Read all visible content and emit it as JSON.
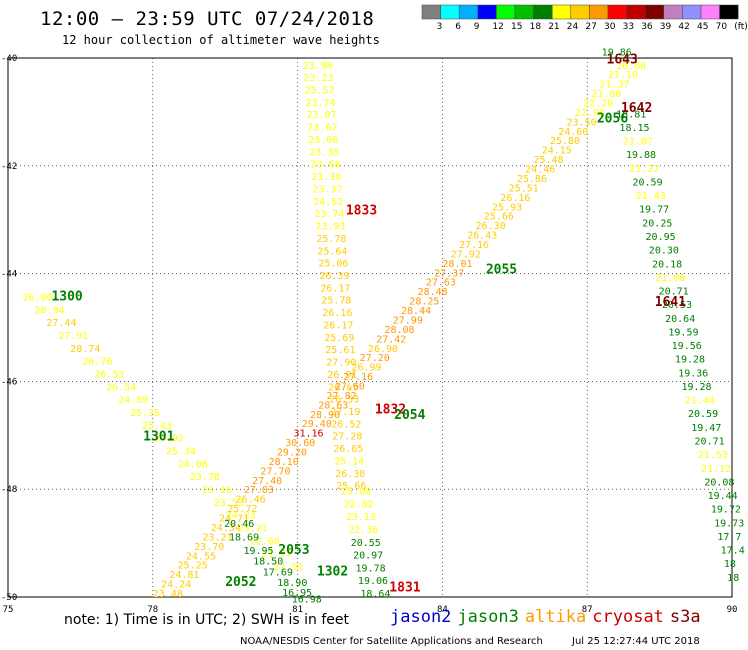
{
  "title": "12:00 – 23:59 UTC 07/24/2018",
  "subtitle": "12 hour collection of altimeter wave heights",
  "colorbar": {
    "colors": [
      "#808080",
      "#00ffff",
      "#00b0ff",
      "#0000ff",
      "#00ff00",
      "#00c000",
      "#008000",
      "#ffff00",
      "#ffcc00",
      "#ff9900",
      "#ff0000",
      "#c00000",
      "#800000",
      "#c080c0",
      "#9090ff",
      "#ff80ff",
      "#000000"
    ],
    "labels": [
      "3",
      "6",
      "9",
      "12",
      "15",
      "18",
      "21",
      "24",
      "27",
      "30",
      "33",
      "36",
      "39",
      "42",
      "45",
      "70",
      "(ft)"
    ]
  },
  "map": {
    "x_ticks": [
      "75",
      "78",
      "81",
      "84",
      "87",
      "90"
    ],
    "y_ticks": [
      "-40",
      "-42",
      "-44",
      "-46",
      "-48",
      "-50"
    ],
    "xlim": [
      75,
      90
    ],
    "ylim": [
      -50,
      -40
    ]
  },
  "satellites": [
    {
      "name": "jason2",
      "color": "#0000cc"
    },
    {
      "name": "jason3",
      "color": "#008000"
    },
    {
      "name": "altika",
      "color": "#ff9900"
    },
    {
      "name": "cryosat",
      "color": "#cc0000"
    },
    {
      "name": "s3a",
      "color": "#800000"
    }
  ],
  "tracks": [
    {
      "label": "1300",
      "label_color": "#008000",
      "label_at": [
        75.9,
        -44.5
      ],
      "start": [
        75.3,
        -44.5
      ],
      "end": [
        80.5,
        -49.5
      ],
      "values": [
        "26.00",
        "28.94",
        "27.44",
        "27.91",
        "28.74",
        "26.76",
        "26.53",
        "26.54",
        "24.69",
        "25.25",
        "25.43",
        "24.92",
        "25.34",
        "24.06",
        "23.78",
        "23.16",
        "23.53",
        "24.23",
        "23.21",
        "22.60",
        "21.77",
        "21.91"
      ],
      "colors": [
        "#ffff00",
        "#ffff00",
        "#ffcc00",
        "#ffff00",
        "#ffcc00",
        "#ffff00",
        "#ffff00",
        "#ffff00",
        "#ffff00",
        "#ffff00",
        "#ffff00",
        "#ffff00",
        "#ffff00",
        "#ffff00",
        "#ffff00",
        "#ffff00",
        "#ffff00",
        "#ffff00",
        "#ffff00",
        "#ffff00",
        "#ffff00",
        "#ffff00"
      ]
    },
    {
      "label": "1833",
      "label_color": "#cc0000",
      "label_at": [
        82.0,
        -42.9
      ],
      "start": [
        81.1,
        -40.2
      ],
      "end": [
        81.8,
        -48.0
      ],
      "values": [
        "23.98",
        "23.23",
        "23.57",
        "23.74",
        "23.07",
        "23.62",
        "23.06",
        "23.35",
        "23.68",
        "23.38",
        "23.37",
        "24.52",
        "23.74",
        "23.93",
        "25.78",
        "25.64",
        "25.06",
        "26.39",
        "26.17",
        "25.78",
        "26.16",
        "26.17",
        "25.69",
        "25.61",
        "27.90",
        "26.91",
        "26.65",
        "26.53",
        "27.19",
        "26.52",
        "27.28",
        "26.65",
        "25.14",
        "26.38",
        "25.66"
      ],
      "colors": [
        "#ffff00",
        "#ffff00",
        "#ffff00",
        "#ffff00",
        "#ffff00",
        "#ffff00",
        "#ffff00",
        "#ffff00",
        "#ffff00",
        "#ffff00",
        "#ffff00",
        "#ffff00",
        "#ffff00",
        "#ffff00",
        "#ffcc00",
        "#ffcc00",
        "#ffcc00",
        "#ffcc00",
        "#ffcc00",
        "#ffcc00",
        "#ffcc00",
        "#ffcc00",
        "#ffcc00",
        "#ffcc00",
        "#ffcc00",
        "#ffcc00",
        "#ffcc00",
        "#ffcc00",
        "#ffcc00",
        "#ffcc00",
        "#ffcc00",
        "#ffcc00",
        "#ffff00",
        "#ffcc00",
        "#ffcc00"
      ]
    },
    {
      "label": "1831",
      "label_color": "#cc0000",
      "label_at": [
        82.9,
        -49.9
      ],
      "start": [
        81.9,
        -48.1
      ],
      "end": [
        82.3,
        -50.0
      ],
      "values": [
        "25.08",
        "22.82",
        "23.13",
        "22.36",
        "20.55",
        "20.97",
        "19.78",
        "19.06",
        "18.64"
      ],
      "colors": [
        "#ffff00",
        "#ffff00",
        "#ffff00",
        "#ffff00",
        "#008000",
        "#008000",
        "#008000",
        "#008000",
        "#008000"
      ]
    },
    {
      "label": "1832",
      "label_color": "#cc0000",
      "label_at": [
        82.6,
        -46.6
      ],
      "start": [
        78.0,
        -50.0
      ],
      "end": [
        87.6,
        -40.2
      ],
      "values": [
        "23.48",
        "24.24",
        "24.81",
        "25.25",
        "24.55",
        "23.70",
        "23.21",
        "24.34",
        "24.71",
        "25.72",
        "26.46",
        "27.03",
        "27.40",
        "27.70",
        "28.10",
        "29.20",
        "30.60",
        "31.16",
        "29.40",
        "28.90",
        "28.63",
        "27.82",
        "27.60",
        "27.16",
        "26.99",
        "27.20",
        "26.90",
        "27.42",
        "28.08",
        "27.99",
        "28.44",
        "28.25",
        "28.48",
        "27.63",
        "27.37",
        "28.01",
        "27.92",
        "27.16",
        "26.43",
        "26.30",
        "25.66",
        "25.93",
        "26.16",
        "25.51",
        "25.86",
        "24.46",
        "25.48",
        "24.15",
        "25.80",
        "24.60",
        "23.50",
        "22.90",
        "22.20",
        "21.80",
        "21.37",
        "21.10",
        "20.60"
      ],
      "colors": [
        "#ffcc00",
        "#ffcc00",
        "#ffcc00",
        "#ffcc00",
        "#ffcc00",
        "#ffcc00",
        "#ffcc00",
        "#ffcc00",
        "#ffcc00",
        "#ffcc00",
        "#ffcc00",
        "#ff9900",
        "#ff9900",
        "#ff9900",
        "#ff9900",
        "#ff9900",
        "#ff9900",
        "#cc0000",
        "#ff9900",
        "#ff9900",
        "#ff9900",
        "#ff9900",
        "#ff9900",
        "#ff9900",
        "#ffcc00",
        "#ff9900",
        "#ffcc00",
        "#ff9900",
        "#ff9900",
        "#ff9900",
        "#ff9900",
        "#ff9900",
        "#ff9900",
        "#ff9900",
        "#ff9900",
        "#ff9900",
        "#ffcc00",
        "#ffcc00",
        "#ffcc00",
        "#ffcc00",
        "#ffcc00",
        "#ffcc00",
        "#ffcc00",
        "#ffcc00",
        "#ffcc00",
        "#ffcc00",
        "#ffcc00",
        "#ffcc00",
        "#ffcc00",
        "#ffcc00",
        "#ffcc00",
        "#ffff00",
        "#ffff00",
        "#ffff00",
        "#ffff00",
        "#ffff00",
        "#ffff00"
      ]
    },
    {
      "label": "1641",
      "label_color": "#800000",
      "label_at": [
        88.4,
        -44.6
      ],
      "start": [
        87.6,
        -41.1
      ],
      "end": [
        89.9,
        -49.7
      ],
      "values": [
        "18.81",
        "18.15",
        "21.07",
        "19.88",
        "21.27",
        "20.59",
        "21.43",
        "19.77",
        "20.25",
        "20.95",
        "20.30",
        "20.18",
        "21.08",
        "20.71",
        "20.53",
        "20.64",
        "19.59",
        "19.56",
        "19.28",
        "19.36",
        "19.28",
        "21.44",
        "20.59",
        "19.47",
        "20.71",
        "21.53",
        "21.12",
        "20.08",
        "19.44",
        "19.72",
        "19.73",
        "17.7",
        "17.4",
        "18",
        "18"
      ],
      "colors": [
        "#008000",
        "#008000",
        "#ffff00",
        "#008000",
        "#ffff00",
        "#008000",
        "#ffff00",
        "#008000",
        "#008000",
        "#008000",
        "#008000",
        "#008000",
        "#ffff00",
        "#008000",
        "#008000",
        "#008000",
        "#008000",
        "#008000",
        "#008000",
        "#008000",
        "#008000",
        "#ffff00",
        "#008000",
        "#008000",
        "#008000",
        "#ffff00",
        "#ffff00",
        "#008000",
        "#008000",
        "#008000",
        "#008000",
        "#008000",
        "#008000",
        "#008000",
        "#008000"
      ]
    }
  ],
  "extra_labels": [
    {
      "text": "1642",
      "color": "#800000",
      "at": [
        87.7,
        -41.0
      ]
    },
    {
      "text": "1643",
      "color": "#800000",
      "at": [
        87.4,
        -40.1
      ]
    },
    {
      "text": "19.86",
      "color": "#008000",
      "at": [
        87.3,
        -39.95
      ]
    },
    {
      "text": "2056",
      "color": "#008000",
      "at": [
        87.2,
        -41.2
      ]
    },
    {
      "text": "2055",
      "color": "#008000",
      "at": [
        84.9,
        -44.0
      ]
    },
    {
      "text": "2054",
      "color": "#008000",
      "at": [
        83.0,
        -46.7
      ]
    },
    {
      "text": "2053",
      "color": "#008000",
      "at": [
        80.6,
        -49.2
      ]
    },
    {
      "text": "2052",
      "color": "#008000",
      "at": [
        79.5,
        -49.8
      ]
    },
    {
      "text": "1302",
      "color": "#008000",
      "at": [
        81.4,
        -49.6
      ]
    },
    {
      "text": "1301",
      "color": "#008000",
      "at": [
        77.8,
        -47.1
      ]
    }
  ],
  "green_cluster": {
    "values": [
      "20.46",
      "18.69",
      "19.95",
      "18.50",
      "17.69",
      "18.90",
      "16.95",
      "16.98"
    ],
    "colors": [
      "#008000",
      "#008000",
      "#008000",
      "#008000",
      "#008000",
      "#008000",
      "#008000",
      "#008000"
    ]
  },
  "note": "note: 1) Time is in UTC; 2) SWH is in feet",
  "footer_left": "NOAA/NESDIS Center for Satellite Applications and Research",
  "footer_right": "Jul 25 12:27:44 UTC 2018"
}
